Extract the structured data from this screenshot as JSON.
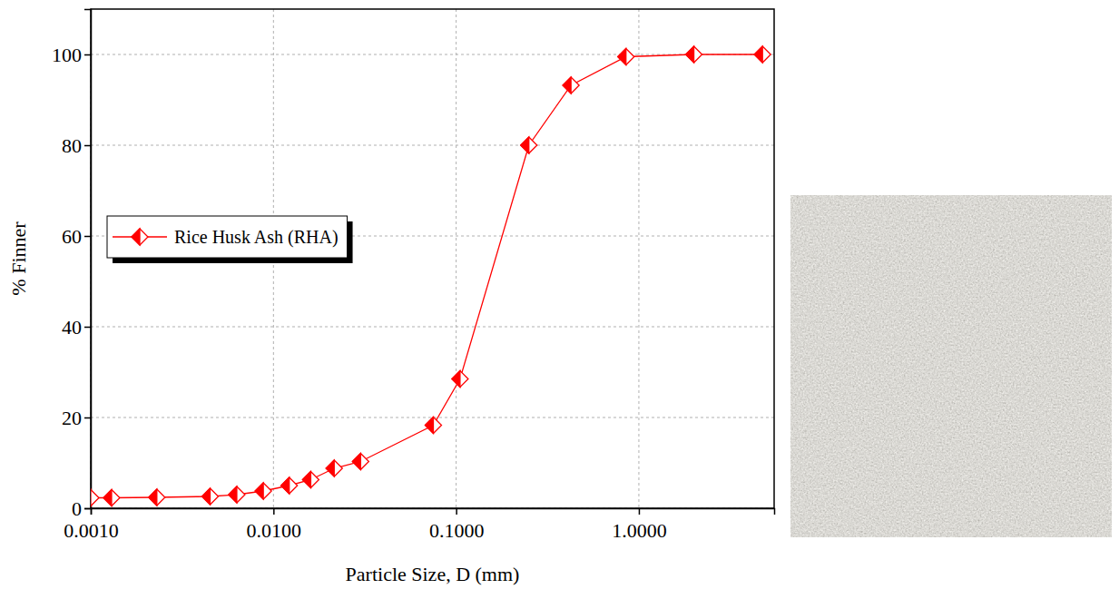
{
  "chart_data": {
    "type": "line",
    "x_label": "Particle Size, D (mm)",
    "y_label": "% Finner",
    "x": [
      0.001,
      0.0013,
      0.0023,
      0.0045,
      0.0063,
      0.0088,
      0.0122,
      0.016,
      0.0215,
      0.03,
      0.075,
      0.105,
      0.25,
      0.425,
      0.85,
      2.0,
      4.75
    ],
    "series": [
      {
        "name": "Rice Husk Ash (RHA)",
        "color": "#ff0000",
        "marker": "diamond",
        "line_style": "solid",
        "values": [
          2.3,
          2.3,
          2.4,
          2.6,
          3.0,
          3.8,
          5.0,
          6.3,
          8.8,
          10.3,
          18.3,
          28.5,
          80,
          93.2,
          99.5,
          100,
          100
        ]
      }
    ],
    "log": "x",
    "xlim": [
      0.001,
      5.5
    ],
    "xticks": [
      {
        "value": 0.001,
        "label": "0.0010"
      },
      {
        "value": 0.01,
        "label": "0.0100"
      },
      {
        "value": 0.1,
        "label": "0.1000"
      },
      {
        "value": 1,
        "label": "1.0000"
      }
    ],
    "ylim": [
      0,
      110
    ],
    "yticks": [
      0,
      20,
      40,
      60,
      80,
      100
    ],
    "grid": true,
    "legend": "left"
  }
}
